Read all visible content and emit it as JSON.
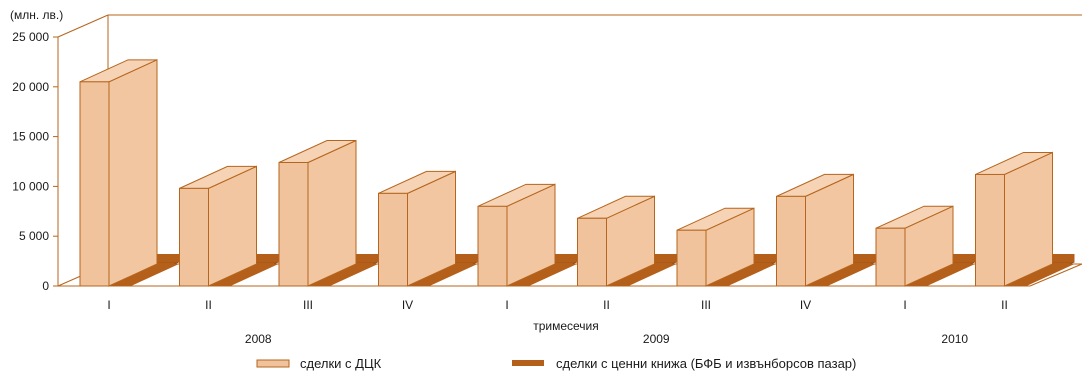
{
  "chart_data": {
    "type": "bar",
    "ylabel": "(млн. лв.)",
    "xlabel": "тримесечия",
    "ylim": [
      0,
      25000
    ],
    "yticks": [
      "0",
      "5 000",
      "10 000",
      "15 000",
      "20 000",
      "25 000"
    ],
    "ytick_values": [
      0,
      5000,
      10000,
      15000,
      20000,
      25000
    ],
    "categories": [
      "I",
      "II",
      "III",
      "IV",
      "I",
      "II",
      "III",
      "IV",
      "I",
      "II"
    ],
    "years": [
      {
        "label": "2008",
        "from": 0,
        "to": 3
      },
      {
        "label": "2009",
        "from": 4,
        "to": 7
      },
      {
        "label": "2010",
        "from": 8,
        "to": 9
      }
    ],
    "series": [
      {
        "name": "сделки с ДЦК",
        "color": "#f0c39c",
        "edge": "#b5651d",
        "values": [
          20500,
          9800,
          12400,
          9300,
          8000,
          6800,
          5600,
          9000,
          5800,
          11200
        ]
      },
      {
        "name": "сделки с ценни книжа (БФБ и извънборсов пазар)",
        "color": "#b5601a",
        "values": [
          250,
          120,
          100,
          100,
          230,
          100,
          60,
          50,
          110,
          80
        ]
      }
    ],
    "grid": false,
    "legend_position": "bottom"
  }
}
